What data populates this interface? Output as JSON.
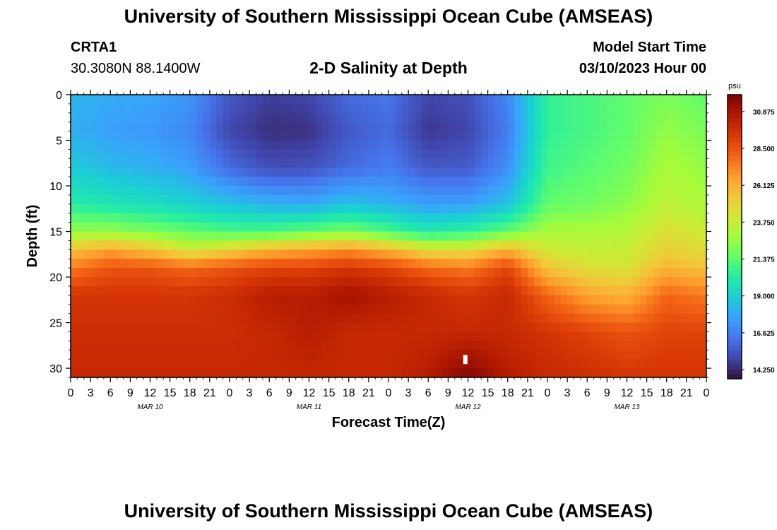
{
  "header": {
    "title": "University of Southern Mississippi Ocean Cube (AMSEAS)",
    "station_id": "CRTA1",
    "coordinates": "30.3080N  88.1400W",
    "chart_title": "2-D Salinity at Depth",
    "model_start_label": "Model Start Time",
    "model_start_value": "03/10/2023 Hour 00"
  },
  "footer": {
    "title": "University of Southern Mississippi Ocean Cube (AMSEAS)"
  },
  "colors": {
    "frame": "#000000",
    "background": "#ffffff",
    "colormap": [
      "#30123b",
      "#4145ab",
      "#4675ed",
      "#39a2fc",
      "#1bcfd4",
      "#24eca6",
      "#61fc6c",
      "#a4fc3b",
      "#d1e834",
      "#f3c63a",
      "#fe9b2d",
      "#f36315",
      "#d93806",
      "#b11901",
      "#7a0403"
    ]
  },
  "chart_data": {
    "type": "heatmap",
    "title": "2-D Salinity at Depth",
    "xlabel": "Forecast Time(Z)",
    "ylabel": "Depth (ft)",
    "x_range_hours": [
      0,
      96
    ],
    "x_tick_step_hours": 3,
    "x_tick_labels": [
      "0",
      "3",
      "6",
      "9",
      "12",
      "15",
      "18",
      "21",
      "0",
      "3",
      "6",
      "9",
      "12",
      "15",
      "18",
      "21",
      "0",
      "3",
      "6",
      "9",
      "12",
      "15",
      "18",
      "21",
      "0",
      "3",
      "6",
      "9",
      "12",
      "15",
      "18",
      "21",
      "0"
    ],
    "date_labels": [
      {
        "text": "MAR 10",
        "hour": 12
      },
      {
        "text": "MAR 11",
        "hour": 36
      },
      {
        "text": "MAR 12",
        "hour": 60
      },
      {
        "text": "MAR 13",
        "hour": 84
      }
    ],
    "y_range_ft": [
      0,
      31
    ],
    "y_ticks": [
      0,
      5,
      10,
      15,
      20,
      25,
      30
    ],
    "y_tick_labels": [
      "0",
      "5",
      "10",
      "15",
      "20",
      "25",
      "30"
    ],
    "colorbar": {
      "unit": "psu",
      "min": 13.66,
      "max": 31.96,
      "ticks": [
        14.25,
        16.625,
        19.0,
        21.375,
        23.75,
        26.125,
        28.5,
        30.875
      ],
      "tick_labels": [
        "14.250",
        "16.625",
        "19.000",
        "21.375",
        "23.750",
        "26.125",
        "28.500",
        "30.875"
      ]
    },
    "grid_hours": [
      0,
      6,
      12,
      18,
      24,
      30,
      36,
      42,
      48,
      54,
      60,
      66,
      72,
      78,
      84,
      90,
      96
    ],
    "grid_depths_ft": [
      0,
      4,
      8,
      12,
      15,
      17,
      19,
      22,
      26,
      31
    ],
    "salinity_psu": [
      [
        18.2,
        17.8,
        17.7,
        17.2,
        15.5,
        14.8,
        15.0,
        16.0,
        16.3,
        15.0,
        15.3,
        16.8,
        20.5,
        21.0,
        21.5,
        22.0,
        21.5
      ],
      [
        18.0,
        17.5,
        17.3,
        16.8,
        15.0,
        14.4,
        14.5,
        15.5,
        16.0,
        14.6,
        15.0,
        16.5,
        20.5,
        21.0,
        21.5,
        22.5,
        22.0
      ],
      [
        18.8,
        18.3,
        18.0,
        17.5,
        16.0,
        15.2,
        15.3,
        16.0,
        16.5,
        15.5,
        15.6,
        17.0,
        20.8,
        21.3,
        21.8,
        23.0,
        22.5
      ],
      [
        20.2,
        19.8,
        19.5,
        19.0,
        18.5,
        18.0,
        17.8,
        18.5,
        18.0,
        17.5,
        17.5,
        18.5,
        21.5,
        21.8,
        22.3,
        23.5,
        23.0
      ],
      [
        22.5,
        22.5,
        22.0,
        21.5,
        21.0,
        21.0,
        21.5,
        22.0,
        21.0,
        20.0,
        20.5,
        21.5,
        23.0,
        23.0,
        23.3,
        24.5,
        24.0
      ],
      [
        25.5,
        26.5,
        25.5,
        24.0,
        25.0,
        26.0,
        26.5,
        27.0,
        26.0,
        24.5,
        24.5,
        26.0,
        24.0,
        23.7,
        23.8,
        25.0,
        24.5
      ],
      [
        27.5,
        28.5,
        28.5,
        28.0,
        28.5,
        29.0,
        29.0,
        29.5,
        29.0,
        28.0,
        27.5,
        29.0,
        25.5,
        24.5,
        24.3,
        26.0,
        25.5
      ],
      [
        29.5,
        29.5,
        29.5,
        29.5,
        29.8,
        30.5,
        30.5,
        31.0,
        30.5,
        30.0,
        29.5,
        30.0,
        28.0,
        26.5,
        26.0,
        28.0,
        27.5
      ],
      [
        29.8,
        29.8,
        29.8,
        29.8,
        29.8,
        30.0,
        30.5,
        30.0,
        30.0,
        30.0,
        30.0,
        30.0,
        29.5,
        29.0,
        28.5,
        29.0,
        29.0
      ],
      [
        30.0,
        30.0,
        30.0,
        30.0,
        30.0,
        30.0,
        30.0,
        30.0,
        30.0,
        30.5,
        31.8,
        30.5,
        30.0,
        29.8,
        29.5,
        29.5,
        29.5
      ]
    ],
    "markers": [
      {
        "label": "white cell marker",
        "hour": 59.6,
        "depth_ft": 29.0
      }
    ]
  }
}
